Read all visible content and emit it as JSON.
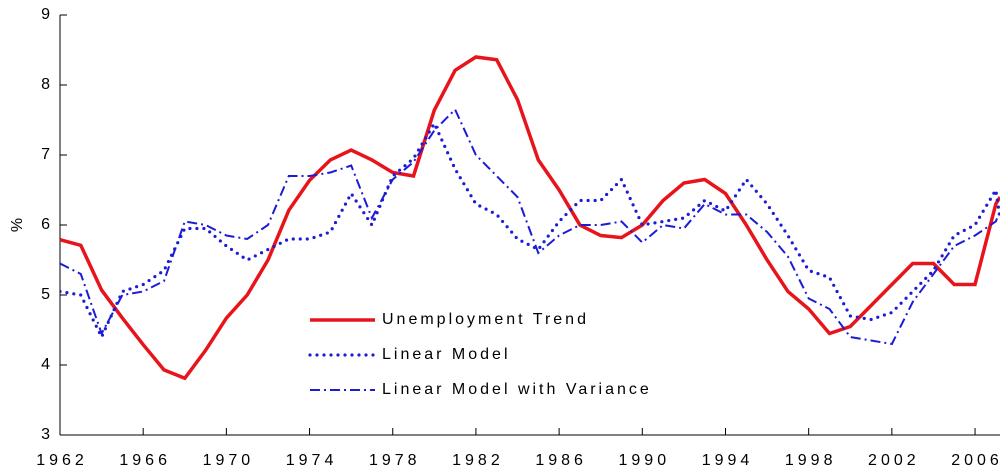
{
  "chart_data": {
    "type": "line",
    "y_label": "%",
    "x": [
      1962,
      1963,
      1964,
      1965,
      1966,
      1967,
      1968,
      1969,
      1970,
      1971,
      1972,
      1973,
      1974,
      1975,
      1976,
      1977,
      1978,
      1979,
      1980,
      1981,
      1982,
      1983,
      1984,
      1985,
      1986,
      1987,
      1988,
      1989,
      1990,
      1991,
      1992,
      1993,
      1994,
      1995,
      1996,
      1997,
      1998,
      1999,
      2000,
      2001,
      2002,
      2003,
      2004,
      2005,
      2006,
      2007,
      2007.2
    ],
    "series": [
      {
        "name": "Unemployment Trend",
        "color": "#e8141b",
        "style": "solid",
        "values": [
          5.79,
          5.71,
          5.07,
          4.67,
          4.29,
          3.93,
          3.81,
          4.21,
          4.67,
          5.0,
          5.5,
          6.21,
          6.64,
          6.93,
          7.07,
          6.93,
          6.75,
          6.7,
          7.64,
          8.21,
          8.4,
          8.36,
          7.79,
          6.93,
          6.5,
          6.0,
          5.85,
          5.82,
          6.0,
          6.35,
          6.6,
          6.65,
          6.45,
          6.0,
          5.5,
          5.05,
          4.8,
          4.45,
          4.55,
          4.85,
          5.15,
          5.45,
          5.45,
          5.15,
          5.15,
          6.3,
          6.4
        ]
      },
      {
        "name": "Linear Model",
        "color": "#1c1cd6",
        "style": "dotted",
        "values": [
          5.05,
          5.0,
          4.4,
          5.05,
          5.15,
          5.35,
          5.95,
          5.95,
          5.7,
          5.5,
          5.65,
          5.8,
          5.8,
          5.9,
          6.45,
          6.0,
          6.7,
          6.95,
          7.45,
          6.8,
          6.3,
          6.15,
          5.8,
          5.65,
          6.05,
          6.35,
          6.35,
          6.65,
          6.0,
          6.05,
          6.1,
          6.35,
          6.2,
          6.65,
          6.3,
          5.85,
          5.35,
          5.25,
          4.7,
          4.65,
          4.75,
          5.05,
          5.35,
          5.85,
          6.0,
          6.5,
          6.1
        ]
      },
      {
        "name": "Linear Model with Variance",
        "color": "#1c1cd6",
        "style": "dashdot",
        "values": [
          5.45,
          5.3,
          4.45,
          5.0,
          5.05,
          5.2,
          6.05,
          6.0,
          5.85,
          5.8,
          6.0,
          6.7,
          6.7,
          6.75,
          6.85,
          6.1,
          6.65,
          6.9,
          7.35,
          7.65,
          7.0,
          6.7,
          6.4,
          5.6,
          5.85,
          6.0,
          6.0,
          6.05,
          5.75,
          6.0,
          5.95,
          6.3,
          6.15,
          6.15,
          5.9,
          5.55,
          4.95,
          4.8,
          4.4,
          4.35,
          4.3,
          4.9,
          5.3,
          5.7,
          5.85,
          6.05,
          6.2
        ]
      }
    ],
    "xlim": [
      1962,
      2007.2
    ],
    "xticks": [
      1962,
      1966,
      1970,
      1974,
      1978,
      1982,
      1986,
      1990,
      1994,
      1998,
      2002,
      2006
    ],
    "ylim": [
      3,
      9
    ],
    "yticks": [
      3,
      4,
      5,
      6,
      7,
      8,
      9
    ]
  }
}
